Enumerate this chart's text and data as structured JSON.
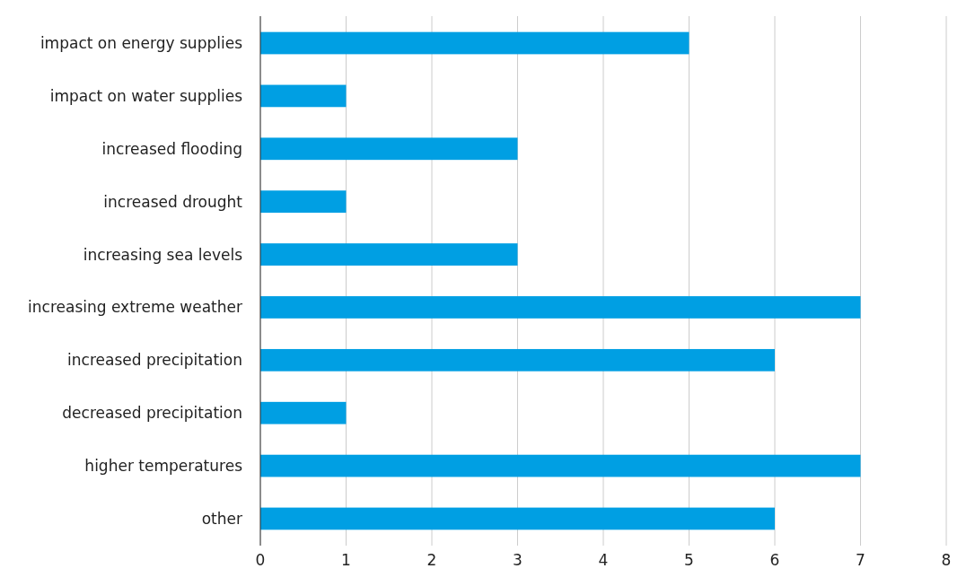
{
  "chart_data": {
    "type": "bar",
    "orientation": "horizontal",
    "categories": [
      "impact on energy supplies",
      "impact on water supplies",
      "increased flooding",
      "increased drought",
      "increasing sea levels",
      "increasing extreme weather",
      "increased precipitation",
      "decreased precipitation",
      "higher temperatures",
      "other"
    ],
    "values": [
      5,
      1,
      3,
      1,
      3,
      7,
      6,
      1,
      7,
      6
    ],
    "color": "#009fe3",
    "xlim": [
      0,
      8
    ],
    "xticks": [
      0,
      1,
      2,
      3,
      4,
      5,
      6,
      7,
      8
    ],
    "grid": "x"
  }
}
